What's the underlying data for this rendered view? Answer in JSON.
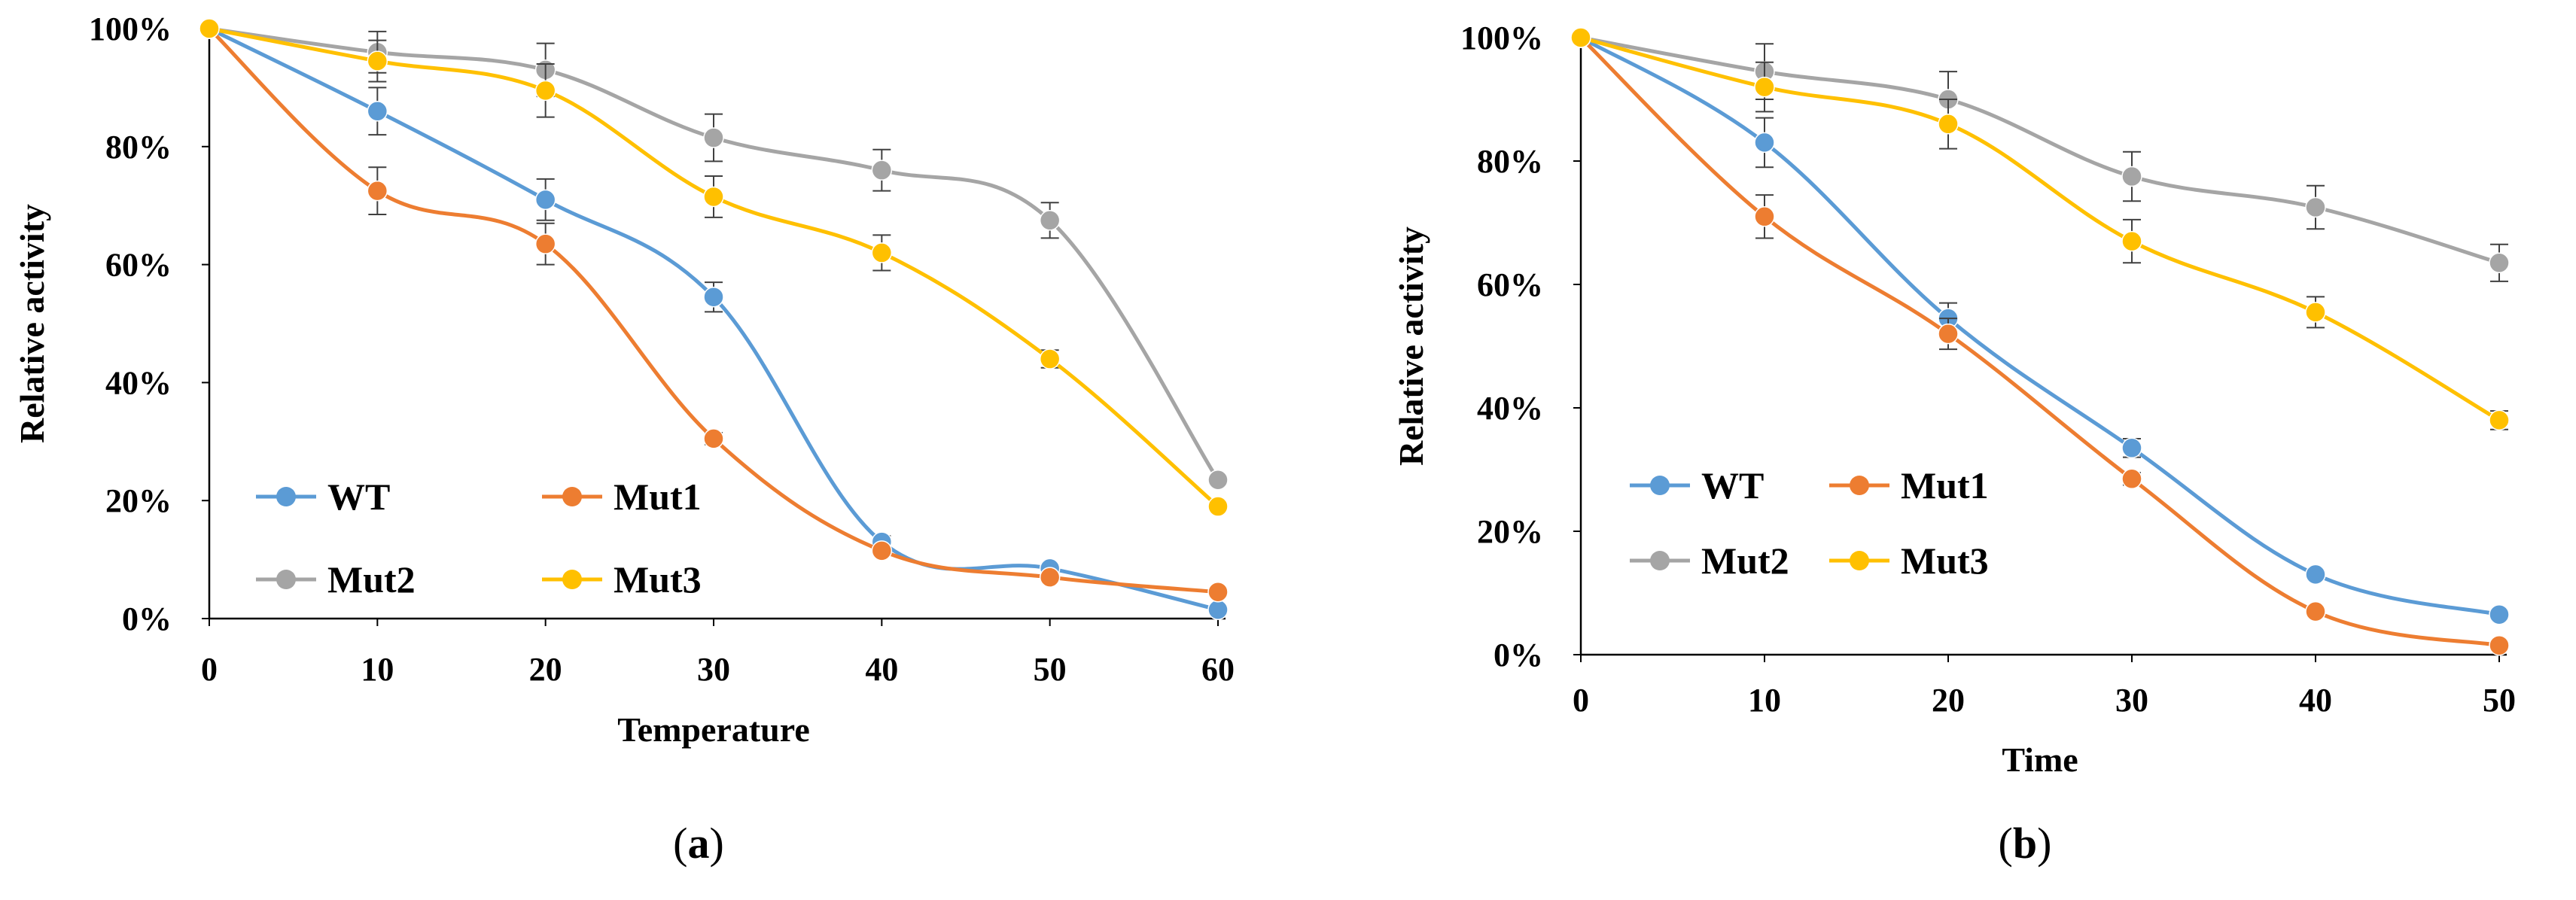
{
  "chart_data": [
    {
      "type": "line",
      "panel_label": "a",
      "title": "",
      "xlabel": "Temperature",
      "ylabel": "Relative activity",
      "x": [
        0,
        10,
        20,
        30,
        40,
        50,
        60
      ],
      "x_tick_labels": [
        "0",
        "10",
        "20",
        "30",
        "40",
        "50",
        "60"
      ],
      "ylim": [
        0,
        100
      ],
      "y_tick_labels": [
        "0%",
        "20%",
        "40%",
        "60%",
        "80%",
        "100%"
      ],
      "grid": false,
      "legend_position": "bottom-left",
      "series": [
        {
          "name": "WT",
          "color": "#5B9BD5",
          "values": [
            100,
            86,
            71,
            54.5,
            13,
            8.5,
            1.5
          ],
          "errors": [
            0,
            4,
            3.5,
            2.5,
            1,
            0.5,
            0
          ]
        },
        {
          "name": "Mut1",
          "color": "#ED7D31",
          "values": [
            100,
            72.5,
            63.5,
            30.5,
            11.5,
            7,
            4.5
          ],
          "errors": [
            0,
            4,
            3.5,
            1,
            0.5,
            0.5,
            0
          ]
        },
        {
          "name": "Mut2",
          "color": "#A5A5A5",
          "values": [
            100,
            96,
            93,
            81.5,
            76,
            67.5,
            23.5
          ],
          "errors": [
            0,
            3.5,
            4.5,
            4,
            3.5,
            3,
            0
          ]
        },
        {
          "name": "Mut3",
          "color": "#FFC000",
          "values": [
            100,
            94.5,
            89.5,
            71.5,
            62,
            44,
            19
          ],
          "errors": [
            0,
            3.5,
            4.5,
            3.5,
            3,
            1.5,
            0
          ]
        }
      ]
    },
    {
      "type": "line",
      "panel_label": "b",
      "title": "",
      "xlabel": "Time",
      "ylabel": "Relative activity",
      "x": [
        0,
        10,
        20,
        30,
        40,
        50
      ],
      "x_tick_labels": [
        "0",
        "10",
        "20",
        "30",
        "40",
        "50"
      ],
      "ylim": [
        0,
        100
      ],
      "y_tick_labels": [
        "0%",
        "20%",
        "40%",
        "60%",
        "80%",
        "100%"
      ],
      "grid": false,
      "legend_position": "bottom-left",
      "series": [
        {
          "name": "WT",
          "color": "#5B9BD5",
          "values": [
            100,
            83,
            54.5,
            33.5,
            13,
            6.5
          ],
          "errors": [
            0,
            4,
            2.5,
            1.5,
            0.5,
            0
          ]
        },
        {
          "name": "Mut1",
          "color": "#ED7D31",
          "values": [
            100,
            71,
            52,
            28.5,
            7,
            1.5
          ],
          "errors": [
            0,
            3.5,
            2.5,
            1,
            0.5,
            0
          ]
        },
        {
          "name": "Mut2",
          "color": "#A5A5A5",
          "values": [
            100,
            94.5,
            90,
            77.5,
            72.5,
            63.5
          ],
          "errors": [
            0,
            4.5,
            4.5,
            4,
            3.5,
            3
          ]
        },
        {
          "name": "Mut3",
          "color": "#FFC000",
          "values": [
            100,
            92,
            86,
            67,
            55.5,
            38
          ],
          "errors": [
            0,
            4,
            4,
            3.5,
            2.5,
            1.5
          ]
        }
      ]
    }
  ]
}
